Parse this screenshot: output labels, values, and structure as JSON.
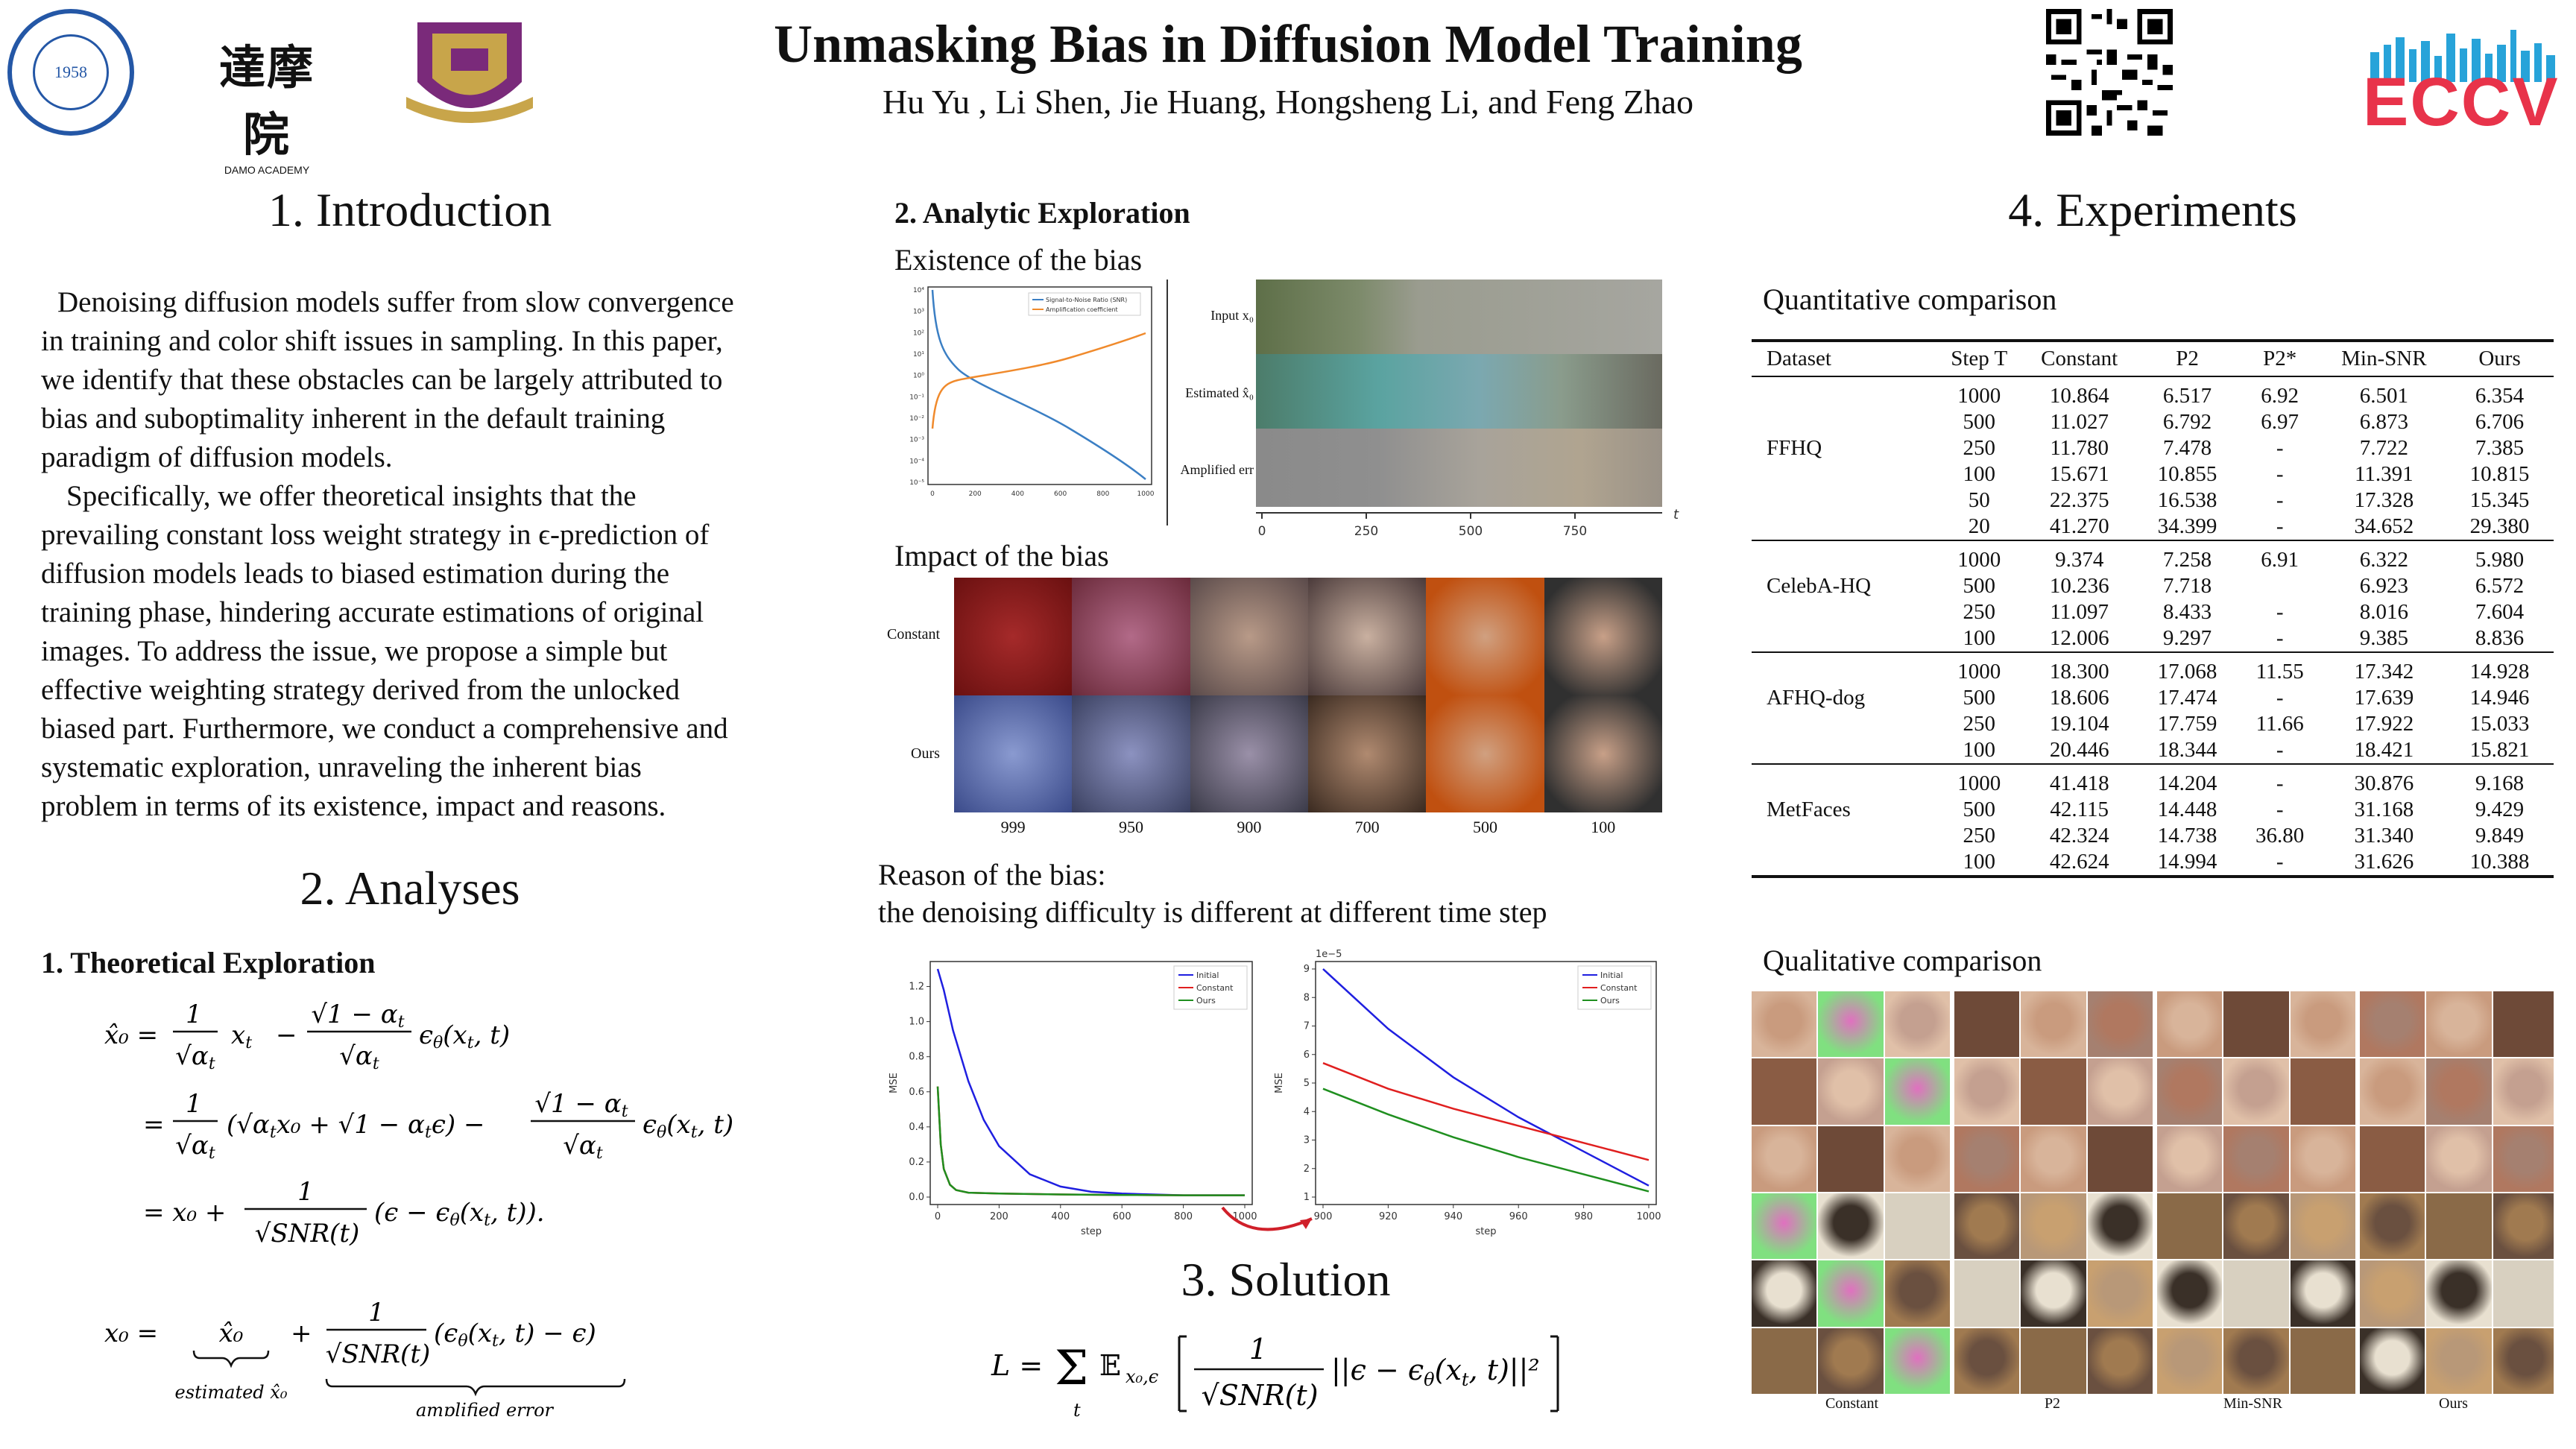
{
  "header": {
    "title": "Unmasking Bias in Diffusion Model Training",
    "authors": "Hu Yu , Li Shen, Jie Huang, Hongsheng Li, and Feng Zhao",
    "logo_ustc_text": "1958",
    "logo_damo_cn": "達摩院",
    "logo_damo_en": "DAMO ACADEMY",
    "logo_eccv": "ECCV"
  },
  "intro": {
    "heading": "1. Introduction",
    "para1_lines": [
      "Denoising diffusion models suffer from slow convergence",
      "in training and color shift issues in sampling. In this paper,",
      "we identify that these obstacles can be largely attributed to",
      "bias and suboptimality inherent in the default training",
      "paradigm of diffusion models."
    ],
    "para2_lines": [
      "Specifically, we offer theoretical insights that the",
      "prevailing constant loss weight strategy in ϵ-prediction of",
      "diffusion models leads to biased estimation during the",
      "training phase, hindering accurate estimations of original",
      "images. To address the issue, we propose a simple but",
      "effective weighting strategy derived from the unlocked",
      "biased part. Furthermore, we conduct a comprehensive and",
      "systematic exploration, unraveling the inherent bias",
      "problem in terms of its existence, impact and reasons."
    ]
  },
  "analyses": {
    "heading": "2. Analyses",
    "theoretical_heading": "1. Theoretical Exploration",
    "eq_estimated": "estimated x̂₀",
    "eq_amplified": "amplified error"
  },
  "analytic": {
    "heading": "2. Analytic Exploration",
    "existence": "Existence of the bias",
    "snr_legend": [
      "Signal-to-Noise Ratio (SNR)",
      "Amplification coefficient"
    ],
    "snr_yticks": [
      "10⁴",
      "10³",
      "10²",
      "10¹",
      "10⁰",
      "10⁻¹",
      "10⁻²",
      "10⁻³",
      "10⁻⁴",
      "10⁻⁵"
    ],
    "snr_xticks": [
      "0",
      "200",
      "400",
      "600",
      "800",
      "1000"
    ],
    "strip_labels": [
      "Input x₀",
      "Estimated x̂₀",
      "Amplified err"
    ],
    "strip_xticks": [
      "0",
      "250",
      "500",
      "750"
    ],
    "strip_xaxis": "t",
    "impact": "Impact of the bias",
    "impact_rows": [
      "Constant",
      "Ours"
    ],
    "impact_steps": [
      "999",
      "950",
      "900",
      "700",
      "500",
      "100"
    ],
    "reason_line1": "Reason of the bias:",
    "reason_line2": "the denoising difficulty is different at different time step"
  },
  "chart_data": [
    {
      "type": "line",
      "xlabel": "step",
      "ylabel": "MSE",
      "xlim": [
        0,
        1000
      ],
      "ylim": [
        0,
        1.3
      ],
      "xticks": [
        "0",
        "200",
        "400",
        "600",
        "800",
        "1000"
      ],
      "yticks": [
        "0.0",
        "0.2",
        "0.4",
        "0.6",
        "0.8",
        "1.0",
        "1.2"
      ],
      "legend": "top-right",
      "series": [
        {
          "name": "Initial",
          "color": "#1f1fe0",
          "x": [
            0,
            20,
            50,
            100,
            150,
            200,
            300,
            400,
            500,
            600,
            700,
            800,
            1000
          ],
          "values": [
            1.3,
            1.18,
            0.95,
            0.66,
            0.44,
            0.29,
            0.13,
            0.06,
            0.03,
            0.02,
            0.015,
            0.01,
            0.01
          ]
        },
        {
          "name": "Constant",
          "color": "#e01f1f",
          "x": [
            0,
            10,
            20,
            40,
            60,
            100,
            200,
            400,
            600,
            800,
            1000
          ],
          "values": [
            0.63,
            0.3,
            0.16,
            0.07,
            0.04,
            0.025,
            0.02,
            0.015,
            0.012,
            0.01,
            0.01
          ]
        },
        {
          "name": "Ours",
          "color": "#1f8f1f",
          "x": [
            0,
            10,
            20,
            40,
            60,
            100,
            200,
            400,
            600,
            800,
            1000
          ],
          "values": [
            0.63,
            0.3,
            0.16,
            0.07,
            0.04,
            0.025,
            0.02,
            0.015,
            0.012,
            0.01,
            0.01
          ]
        }
      ]
    },
    {
      "type": "line",
      "xlabel": "step",
      "ylabel": "MSE",
      "scale_label": "1e−5",
      "xlim": [
        900,
        1000
      ],
      "ylim": [
        1,
        9
      ],
      "xticks": [
        "900",
        "920",
        "940",
        "960",
        "980",
        "1000"
      ],
      "yticks": [
        "1",
        "2",
        "3",
        "4",
        "5",
        "6",
        "7",
        "8",
        "9"
      ],
      "legend": "top-right",
      "series": [
        {
          "name": "Initial",
          "color": "#1f1fe0",
          "x": [
            900,
            920,
            940,
            960,
            980,
            1000
          ],
          "values": [
            9.0,
            6.9,
            5.2,
            3.8,
            2.6,
            1.4
          ]
        },
        {
          "name": "Constant",
          "color": "#e01f1f",
          "x": [
            900,
            920,
            940,
            960,
            980,
            1000
          ],
          "values": [
            5.7,
            4.8,
            4.1,
            3.5,
            2.9,
            2.3
          ]
        },
        {
          "name": "Ours",
          "color": "#1f8f1f",
          "x": [
            900,
            920,
            940,
            960,
            980,
            1000
          ],
          "values": [
            4.8,
            3.9,
            3.1,
            2.4,
            1.8,
            1.2
          ]
        }
      ]
    }
  ],
  "solution": {
    "heading": "3. Solution"
  },
  "experiments": {
    "heading": "4. Experiments",
    "quant_heading": "Quantitative comparison",
    "columns": [
      "Dataset",
      "Step T",
      "Constant",
      "P2",
      "P2*",
      "Min-SNR",
      "Ours"
    ],
    "groups": [
      {
        "dataset": "FFHQ",
        "rows": [
          [
            "1000",
            "10.864",
            "6.517",
            "6.92",
            "6.501",
            "6.354"
          ],
          [
            "500",
            "11.027",
            "6.792",
            "6.97",
            "6.873",
            "6.706"
          ],
          [
            "250",
            "11.780",
            "7.478",
            "-",
            "7.722",
            "7.385"
          ],
          [
            "100",
            "15.671",
            "10.855",
            "-",
            "11.391",
            "10.815"
          ],
          [
            "50",
            "22.375",
            "16.538",
            "-",
            "17.328",
            "15.345"
          ],
          [
            "20",
            "41.270",
            "34.399",
            "-",
            "34.652",
            "29.380"
          ]
        ]
      },
      {
        "dataset": "CelebA-HQ",
        "rows": [
          [
            "1000",
            "9.374",
            "7.258",
            "6.91",
            "6.322",
            "5.980"
          ],
          [
            "500",
            "10.236",
            "7.718",
            "",
            "6.923",
            "6.572"
          ],
          [
            "250",
            "11.097",
            "8.433",
            "-",
            "8.016",
            "7.604"
          ],
          [
            "100",
            "12.006",
            "9.297",
            "-",
            "9.385",
            "8.836"
          ]
        ]
      },
      {
        "dataset": "AFHQ-dog",
        "rows": [
          [
            "1000",
            "18.300",
            "17.068",
            "11.55",
            "17.342",
            "14.928"
          ],
          [
            "500",
            "18.606",
            "17.474",
            "-",
            "17.639",
            "14.946"
          ],
          [
            "250",
            "19.104",
            "17.759",
            "11.66",
            "17.922",
            "15.033"
          ],
          [
            "100",
            "20.446",
            "18.344",
            "-",
            "18.421",
            "15.821"
          ]
        ]
      },
      {
        "dataset": "MetFaces",
        "rows": [
          [
            "1000",
            "41.418",
            "14.204",
            "-",
            "30.876",
            "9.168"
          ],
          [
            "500",
            "42.115",
            "14.448",
            "-",
            "31.168",
            "9.429"
          ],
          [
            "250",
            "42.324",
            "14.738",
            "36.80",
            "31.340",
            "9.849"
          ],
          [
            "100",
            "42.624",
            "14.994",
            "-",
            "31.626",
            "10.388"
          ]
        ]
      }
    ],
    "qual_heading": "Qualitative comparison",
    "qual_labels": [
      "Constant",
      "P2",
      "Min-SNR",
      "Ours"
    ]
  }
}
